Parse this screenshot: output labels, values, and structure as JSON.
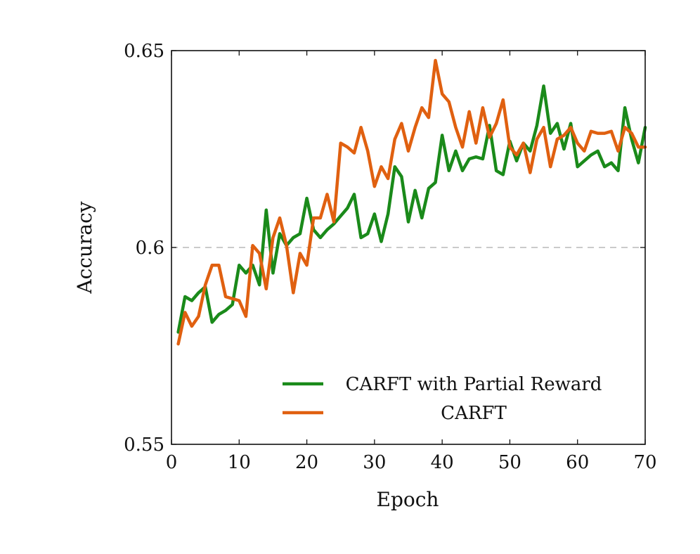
{
  "chart_data": {
    "type": "line",
    "xlabel": "Epoch",
    "ylabel": "Accuracy",
    "xlim": [
      0,
      70
    ],
    "ylim": [
      0.55,
      0.65
    ],
    "xticks": [
      "0",
      "10",
      "20",
      "30",
      "40",
      "50",
      "60",
      "70"
    ],
    "yticks": [
      "0.55",
      "0.6",
      "0.65"
    ],
    "reference_line": 0.6,
    "grid": "vertical ticks only; dashed horizontal line at 0.6",
    "legend_position": "bottom-right",
    "series": [
      {
        "name": "CARFT with Partial Reward",
        "color": "#1a8a1a",
        "x": [
          1,
          2,
          3,
          4,
          5,
          6,
          7,
          8,
          9,
          10,
          11,
          12,
          13,
          14,
          15,
          16,
          17,
          18,
          19,
          20,
          21,
          22,
          23,
          24,
          25,
          26,
          27,
          28,
          29,
          30,
          31,
          32,
          33,
          34,
          35,
          36,
          37,
          38,
          39,
          40,
          41,
          42,
          43,
          44,
          45,
          46,
          47,
          48,
          49,
          50,
          51,
          52,
          53,
          54,
          55,
          56,
          57,
          58,
          59,
          60,
          61,
          62,
          63,
          64,
          65,
          66,
          67,
          68,
          69,
          70
        ],
        "values": [
          0.5785,
          0.5875,
          0.5865,
          0.5885,
          0.59,
          0.581,
          0.583,
          0.584,
          0.5855,
          0.5955,
          0.5935,
          0.5955,
          0.5905,
          0.6095,
          0.5935,
          0.6035,
          0.6005,
          0.6025,
          0.6035,
          0.6125,
          0.6045,
          0.6025,
          0.6045,
          0.606,
          0.608,
          0.61,
          0.6135,
          0.6025,
          0.6035,
          0.6085,
          0.6015,
          0.6085,
          0.6205,
          0.618,
          0.6065,
          0.6145,
          0.6075,
          0.615,
          0.6165,
          0.6285,
          0.6195,
          0.6245,
          0.6195,
          0.6225,
          0.623,
          0.6225,
          0.631,
          0.6195,
          0.6185,
          0.627,
          0.622,
          0.6265,
          0.6245,
          0.631,
          0.641,
          0.629,
          0.6315,
          0.625,
          0.6315,
          0.6205,
          0.622,
          0.6235,
          0.6245,
          0.6205,
          0.6215,
          0.6195,
          0.6355,
          0.6275,
          0.6215,
          0.6305
        ]
      },
      {
        "name": "CARFT",
        "color": "#e06010",
        "x": [
          1,
          2,
          3,
          4,
          5,
          6,
          7,
          8,
          9,
          10,
          11,
          12,
          13,
          14,
          15,
          16,
          17,
          18,
          19,
          20,
          21,
          22,
          23,
          24,
          25,
          26,
          27,
          28,
          29,
          30,
          31,
          32,
          33,
          34,
          35,
          36,
          37,
          38,
          39,
          40,
          41,
          42,
          43,
          44,
          45,
          46,
          47,
          48,
          49,
          50,
          51,
          52,
          53,
          54,
          55,
          56,
          57,
          58,
          59,
          60,
          61,
          62,
          63,
          64,
          65,
          66,
          67,
          68,
          69,
          70
        ],
        "values": [
          0.5755,
          0.5835,
          0.58,
          0.5825,
          0.5905,
          0.5955,
          0.5955,
          0.5875,
          0.587,
          0.5865,
          0.5825,
          0.6005,
          0.5985,
          0.5895,
          0.6025,
          0.6075,
          0.6005,
          0.5885,
          0.5985,
          0.5955,
          0.6075,
          0.6075,
          0.6135,
          0.6065,
          0.6265,
          0.6255,
          0.624,
          0.6305,
          0.6245,
          0.6155,
          0.6205,
          0.6175,
          0.6275,
          0.6315,
          0.6245,
          0.6305,
          0.6355,
          0.633,
          0.6475,
          0.639,
          0.637,
          0.6305,
          0.6255,
          0.6345,
          0.6265,
          0.6355,
          0.628,
          0.6315,
          0.6375,
          0.6255,
          0.6235,
          0.6265,
          0.619,
          0.6275,
          0.6305,
          0.6205,
          0.6275,
          0.6285,
          0.6305,
          0.6265,
          0.6245,
          0.6295,
          0.629,
          0.629,
          0.6295,
          0.6245,
          0.6305,
          0.629,
          0.6255,
          0.6255
        ]
      }
    ]
  }
}
